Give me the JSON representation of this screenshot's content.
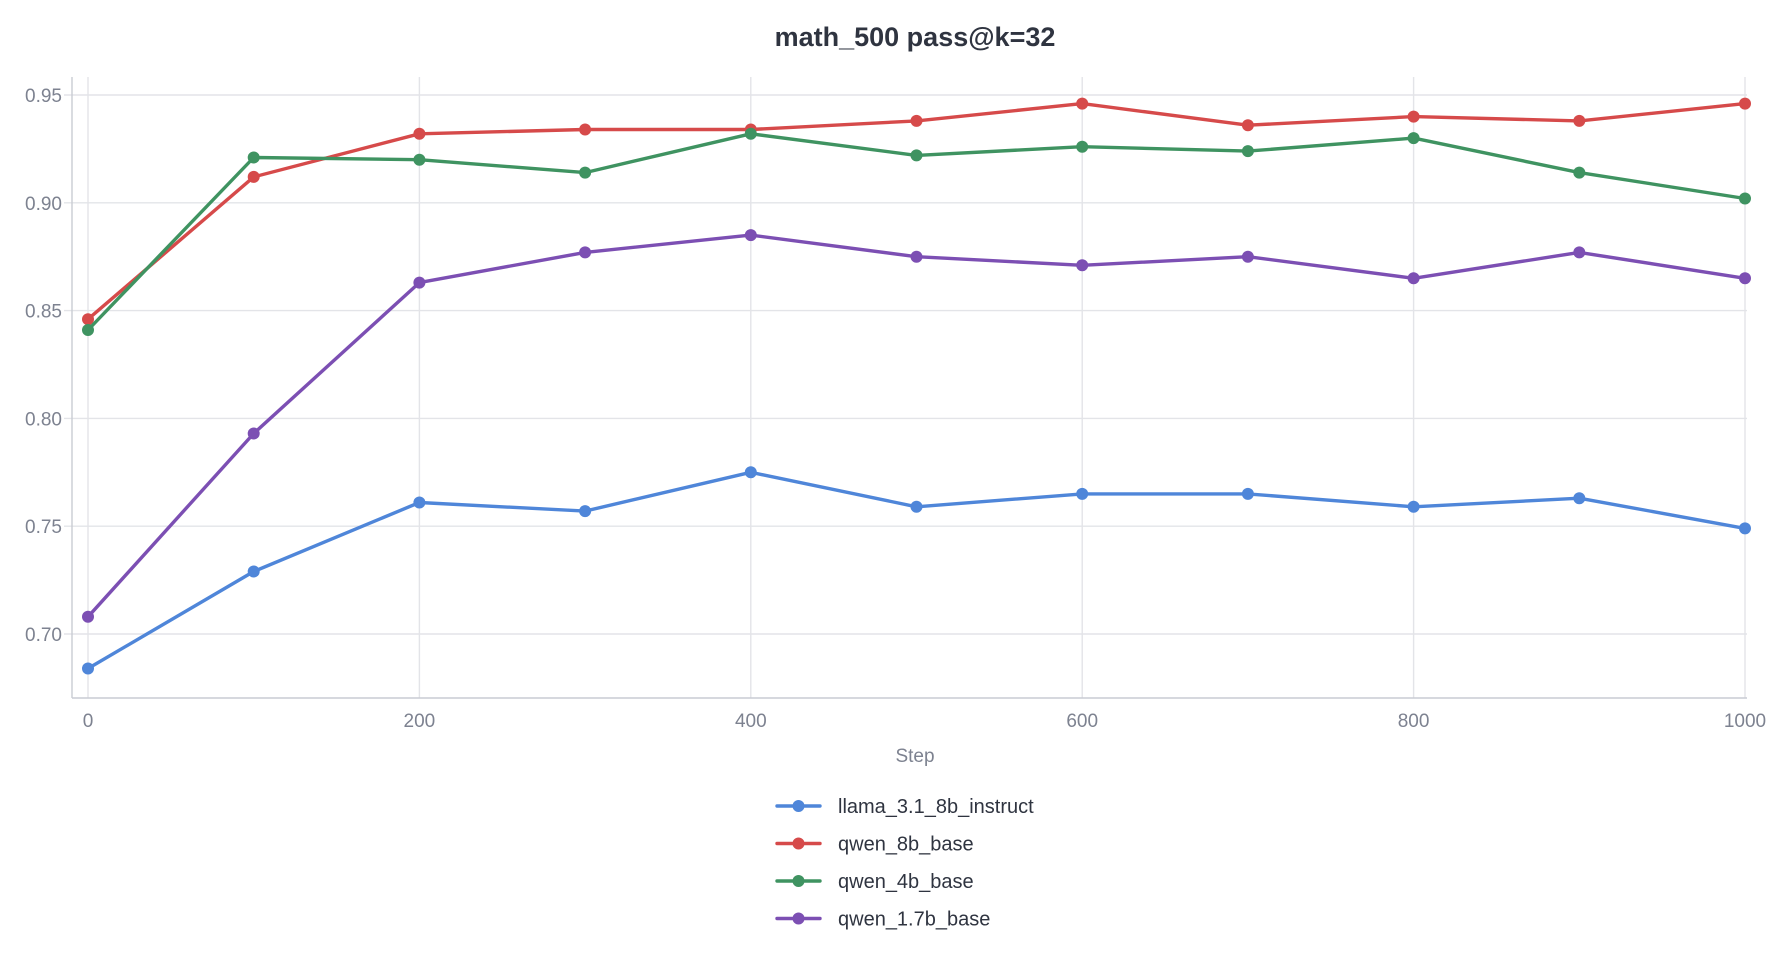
{
  "chart_data": {
    "type": "line",
    "title": "math_500 pass@k=32",
    "xlabel": "Step",
    "ylabel": "",
    "x": [
      0,
      100,
      200,
      300,
      400,
      500,
      600,
      700,
      800,
      900,
      1000
    ],
    "xlim": [
      0,
      1000
    ],
    "ylim": [
      0.672,
      0.958
    ],
    "x_ticks": [
      0,
      200,
      400,
      600,
      800,
      1000
    ],
    "x_tick_labels": [
      "0",
      "200",
      "400",
      "600",
      "800",
      "1000"
    ],
    "y_ticks": [
      0.7,
      0.75,
      0.8,
      0.85,
      0.9,
      0.95
    ],
    "y_tick_labels": [
      "0.70",
      "0.75",
      "0.80",
      "0.85",
      "0.90",
      "0.95"
    ],
    "grid": true,
    "legend_position": "bottom-center",
    "series": [
      {
        "name": "llama_3.1_8b_instruct",
        "color": "#4f86d9",
        "values": [
          0.684,
          0.729,
          0.761,
          0.757,
          0.775,
          0.759,
          0.765,
          0.765,
          0.759,
          0.763,
          0.749
        ]
      },
      {
        "name": "qwen_8b_base",
        "color": "#d64a4a",
        "values": [
          0.846,
          0.912,
          0.932,
          0.934,
          0.934,
          0.938,
          0.946,
          0.936,
          0.94,
          0.938,
          0.946
        ]
      },
      {
        "name": "qwen_4b_base",
        "color": "#3f9361",
        "values": [
          0.841,
          0.921,
          0.92,
          0.914,
          0.932,
          0.922,
          0.926,
          0.924,
          0.93,
          0.914,
          0.902
        ]
      },
      {
        "name": "qwen_1.7b_base",
        "color": "#7c4fb3",
        "values": [
          0.708,
          0.793,
          0.863,
          0.877,
          0.885,
          0.875,
          0.871,
          0.875,
          0.865,
          0.877,
          0.865
        ]
      }
    ]
  }
}
